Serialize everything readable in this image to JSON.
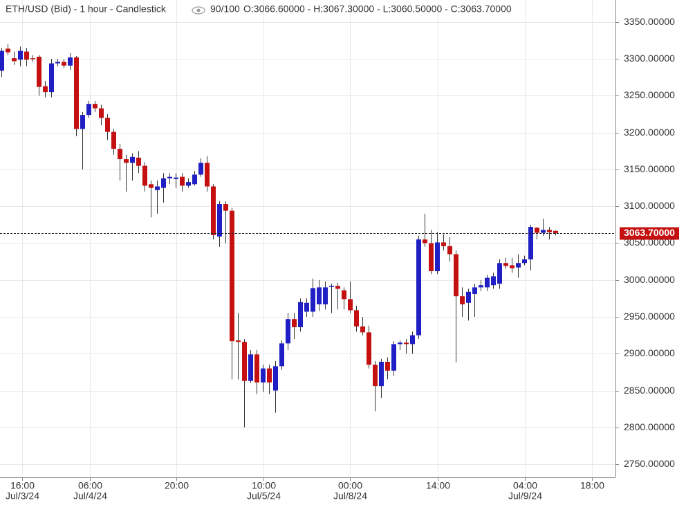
{
  "chart_data": {
    "type": "candlestick",
    "title": "ETH/USD (Bid) - 1 hour - Candlestick",
    "bar_count": "90/100",
    "ohlc_text": "O:3066.60000 - H:3067.30000 - L:3060.50000 - C:3063.70000",
    "last_price_label": "3063.70000",
    "up_color": "#1f1fc4",
    "down_color": "#c41010",
    "grid": true,
    "x": [
      0,
      1,
      2,
      3,
      4,
      5,
      6,
      7,
      8,
      9,
      10,
      11,
      12,
      13,
      14,
      15,
      16,
      17,
      18,
      19,
      20,
      21,
      22,
      23,
      24,
      25,
      26,
      27,
      28,
      29,
      30,
      31,
      32,
      33,
      34,
      35,
      36,
      37,
      38,
      39,
      40,
      41,
      42,
      43,
      44,
      45,
      46,
      47,
      48,
      49,
      50,
      51,
      52,
      53,
      54,
      55,
      56,
      57,
      58,
      59,
      60,
      61,
      62,
      63,
      64,
      65,
      66,
      67,
      68,
      69,
      70,
      71,
      72,
      73,
      74,
      75,
      76,
      77,
      78,
      79,
      80,
      81,
      82,
      83,
      84,
      85,
      86,
      87,
      88,
      89
    ],
    "open": [
      3284,
      3314,
      3301,
      3299,
      3310,
      3301,
      3303,
      3263,
      3255,
      3294,
      3296,
      3291,
      3302,
      3205,
      3224,
      3239,
      3233,
      3220,
      3201,
      3178,
      3164,
      3159,
      3166,
      3155,
      3130,
      3122,
      3125,
      3138,
      3137,
      3140,
      3128,
      3130,
      3143,
      3159,
      3127,
      3059,
      3103,
      3094,
      2918,
      2916,
      2863,
      2899,
      2861,
      2880,
      2850,
      2883,
      2914,
      2947,
      2936,
      2957,
      2957,
      2967,
      2967,
      2992,
      2992,
      2986,
      2974,
      2959,
      2937,
      2929,
      2885,
      2856,
      2889,
      2877,
      2913,
      2915,
      2913,
      2925,
      3055,
      3050,
      3012,
      3051,
      3046,
      3035,
      2978,
      2969,
      2981,
      2990,
      2990,
      2993,
      2995,
      3023,
      3020,
      3017,
      3023,
      3028,
      3071,
      3064,
      3068,
      3066.6
    ],
    "high": [
      3315,
      3320,
      3310,
      3317,
      3315,
      3305,
      3305,
      3270,
      3300,
      3300,
      3300,
      3308,
      3304,
      3228,
      3243,
      3243,
      3238,
      3225,
      3205,
      3185,
      3170,
      3172,
      3175,
      3160,
      3135,
      3135,
      3145,
      3145,
      3145,
      3145,
      3138,
      3148,
      3165,
      3168,
      3130,
      3107,
      3107,
      3098,
      2955,
      2920,
      2905,
      2905,
      2885,
      2885,
      2890,
      2918,
      2955,
      2955,
      2975,
      2975,
      3002,
      3000,
      2998,
      2995,
      2996,
      2990,
      2998,
      2965,
      2950,
      2938,
      2890,
      2893,
      2895,
      2917,
      2918,
      2920,
      2930,
      3060,
      3090,
      3068,
      3065,
      3062,
      3058,
      3040,
      2990,
      2988,
      2995,
      3000,
      3007,
      3010,
      3028,
      3030,
      3030,
      3035,
      3033,
      3075,
      3072,
      3083,
      3072,
      3067.3
    ],
    "low": [
      3275,
      3305,
      3292,
      3290,
      3290,
      3296,
      3250,
      3248,
      3248,
      3290,
      3288,
      3285,
      3195,
      3150,
      3220,
      3228,
      3210,
      3190,
      3170,
      3135,
      3120,
      3135,
      3145,
      3120,
      3085,
      3090,
      3105,
      3130,
      3125,
      3120,
      3125,
      3128,
      3140,
      3120,
      3055,
      3045,
      3050,
      2865,
      2865,
      2800,
      2860,
      2845,
      2848,
      2845,
      2820,
      2878,
      2905,
      2920,
      2930,
      2950,
      2950,
      2958,
      2960,
      2955,
      2960,
      2960,
      2955,
      2930,
      2925,
      2880,
      2822,
      2840,
      2865,
      2870,
      2905,
      2900,
      2900,
      2920,
      3045,
      3008,
      3008,
      3040,
      3025,
      2888,
      2950,
      2945,
      2950,
      2985,
      2985,
      2988,
      2988,
      3015,
      3010,
      3003,
      3020,
      3013,
      3055,
      3060,
      3055,
      3060.5
    ],
    "close": [
      3311,
      3309,
      3297,
      3311,
      3299,
      3300,
      3262,
      3255,
      3294,
      3296,
      3291,
      3302,
      3205,
      3224,
      3239,
      3233,
      3220,
      3201,
      3178,
      3164,
      3159,
      3167,
      3155,
      3128,
      3125,
      3127,
      3138,
      3140,
      3139,
      3128,
      3133,
      3143,
      3159,
      3127,
      3061,
      3103,
      3094,
      2917,
      2916,
      2863,
      2899,
      2861,
      2880,
      2861,
      2883,
      2914,
      2947,
      2936,
      2970,
      2969,
      2989,
      2990,
      2990,
      2992,
      2988,
      2974,
      2959,
      2937,
      2929,
      2885,
      2856,
      2889,
      2877,
      2913,
      2915,
      2913,
      2925,
      3055,
      3050,
      3012,
      3051,
      3046,
      3035,
      2978,
      2967,
      2984,
      2990,
      2993,
      3003,
      3005,
      3023,
      3019,
      3016,
      3023,
      3028,
      3072,
      3064,
      3068,
      3065,
      3063.7
    ],
    "xlim": [
      -0.22,
      98.67
    ],
    "xticks": [
      {
        "value": 3.3,
        "label": "16:00",
        "date": "Jul/3/24"
      },
      {
        "value": 14.2,
        "label": "06:00",
        "date": "Jul/4/24"
      },
      {
        "value": 28.1,
        "label": "20:00"
      },
      {
        "value": 42.1,
        "label": "10:00",
        "date": "Jul/5/24"
      },
      {
        "value": 56,
        "label": "00:00",
        "date": "Jul/8/24"
      },
      {
        "value": 70.1,
        "label": "14:00"
      },
      {
        "value": 84.1,
        "label": "04:00",
        "date": "Jul/9/24"
      },
      {
        "value": 94.9,
        "label": "18:00"
      }
    ],
    "ylim": [
      2732.2,
      3380
    ],
    "yticks": [
      {
        "value": 2750,
        "label": "2750.00000"
      },
      {
        "value": 2800,
        "label": "2800.00000"
      },
      {
        "value": 2850,
        "label": "2850.00000"
      },
      {
        "value": 2900,
        "label": "2900.00000"
      },
      {
        "value": 2950,
        "label": "2950.00000"
      },
      {
        "value": 3000,
        "label": "3000.00000"
      },
      {
        "value": 3050,
        "label": "3050.00000"
      },
      {
        "value": 3100,
        "label": "3100.00000"
      },
      {
        "value": 3150,
        "label": "3150.00000"
      },
      {
        "value": 3200,
        "label": "3200.00000"
      },
      {
        "value": 3250,
        "label": "3250.00000"
      },
      {
        "value": 3300,
        "label": "3300.00000"
      },
      {
        "value": 3350,
        "label": "3350.00000"
      }
    ]
  }
}
